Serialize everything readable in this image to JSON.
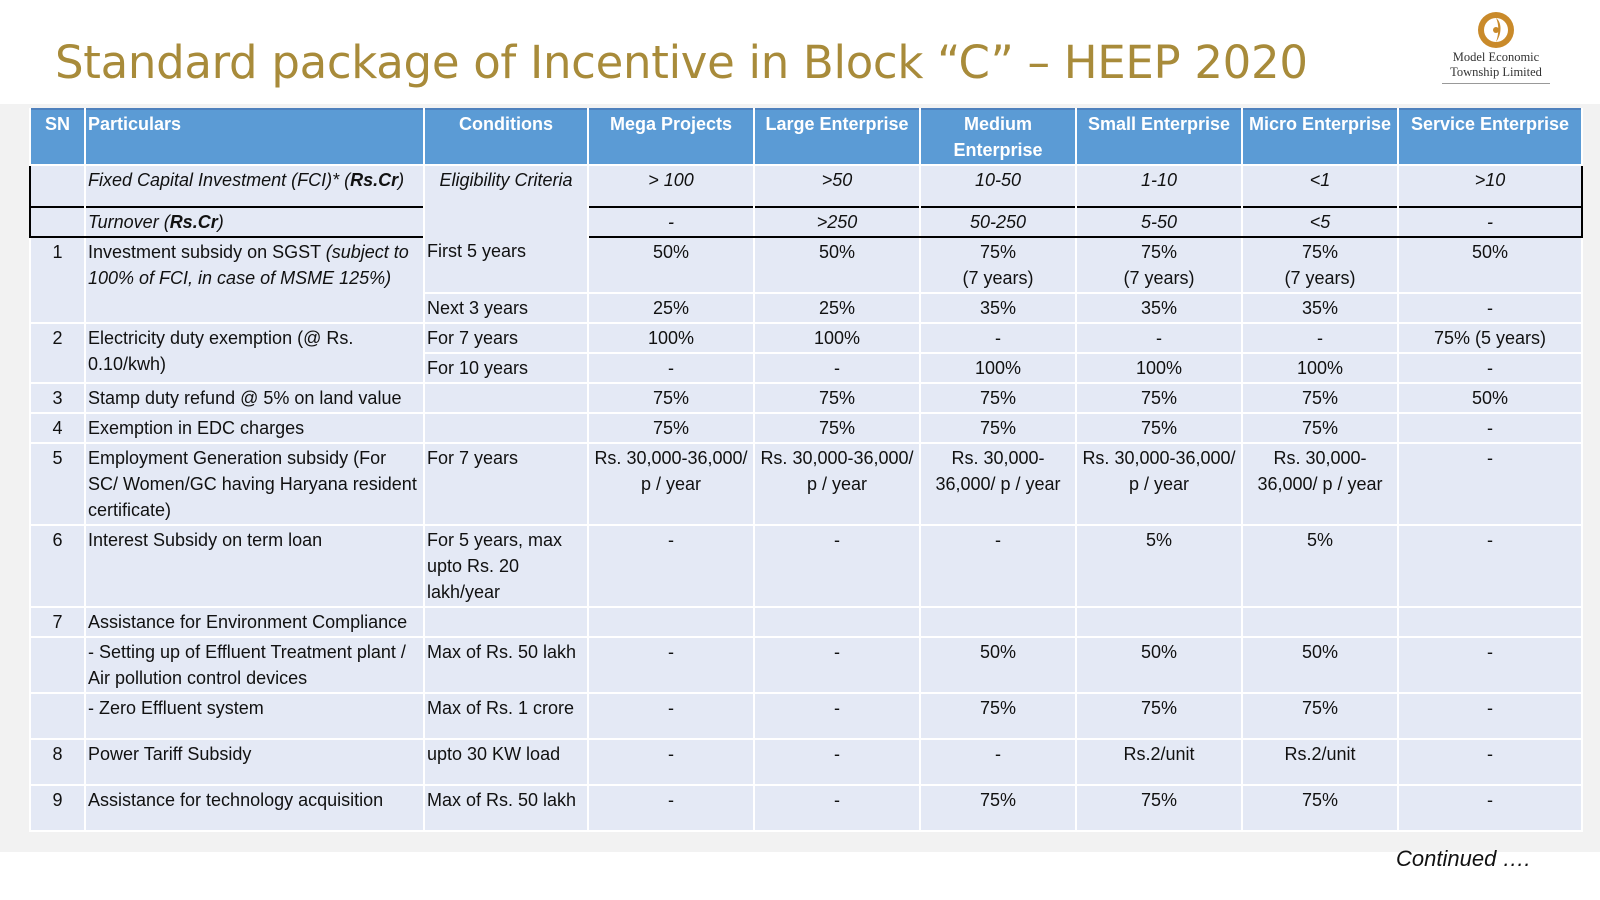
{
  "title": "Standard package of Incentive in Block “C” – HEEP 2020",
  "logo": {
    "line1": "Model Economic",
    "line2": "Township Limited",
    "icon": "reliance-logo-icon",
    "color": "#c98a2a"
  },
  "colors": {
    "title": "#a88b3a",
    "header_bg": "#5b9bd5",
    "row_bg": "#e4e9f5"
  },
  "table": {
    "headers": {
      "sn": "SN",
      "particulars": "Particulars",
      "conditions": "Conditions",
      "mega": "Mega Projects",
      "large": "Large Enterprise",
      "medium": "Medium Enterprise",
      "small": "Small Enterprise",
      "micro": "Micro Enterprise",
      "service": "Service Enterprise"
    },
    "eligibility": {
      "condition": "Eligibility Criteria",
      "fci": {
        "label_prefix": "Fixed Capital Investment (FCI)* (",
        "label_bold": "Rs.Cr",
        "label_suffix": ")",
        "values": [
          "> 100",
          ">50",
          "10-50",
          "1-10",
          "<1",
          ">10"
        ]
      },
      "turnover": {
        "label_prefix": "Turnover (",
        "label_bold": "Rs.Cr",
        "label_suffix": ")",
        "values": [
          "-",
          ">250",
          "50-250",
          "5-50",
          "<5",
          "-"
        ]
      }
    },
    "rows": {
      "r1": {
        "sn": "1",
        "particular": "Investment subsidy on SGST ",
        "particular_note": "(subject to 100% of FCI, in case of MSME 125%)",
        "a": {
          "condition": "First 5 years",
          "values": [
            "50%",
            "50%",
            "75%\n(7 years)",
            "75%\n(7 years)",
            "75%\n(7 years)",
            "50%"
          ]
        },
        "b": {
          "condition": "Next 3 years",
          "values": [
            "25%",
            "25%",
            "35%",
            "35%",
            "35%",
            "-"
          ]
        }
      },
      "r2": {
        "sn": "2",
        "particular": "Electricity duty exemption (@ Rs. 0.10/kwh)",
        "a": {
          "condition": "For 7 years",
          "values": [
            "100%",
            "100%",
            "-",
            "-",
            "-",
            "75% (5 years)"
          ]
        },
        "b": {
          "condition": "For 10 years",
          "values": [
            "-",
            "-",
            "100%",
            "100%",
            "100%",
            "-"
          ]
        }
      },
      "r3": {
        "sn": "3",
        "particular": "Stamp duty refund @ 5% on land value",
        "condition": "",
        "values": [
          "75%",
          "75%",
          "75%",
          "75%",
          "75%",
          "50%"
        ]
      },
      "r4": {
        "sn": "4",
        "particular": "Exemption in EDC charges",
        "condition": "",
        "values": [
          "75%",
          "75%",
          "75%",
          "75%",
          "75%",
          "-"
        ]
      },
      "r5": {
        "sn": "5",
        "particular": "Employment Generation subsidy (For SC/ Women/GC having Haryana resident certificate)",
        "condition": "For 7 years",
        "values": [
          "Rs. 30,000-36,000/ p / year",
          "Rs. 30,000-36,000/ p / year",
          "Rs. 30,000-36,000/ p / year",
          "Rs. 30,000-36,000/ p / year",
          "Rs. 30,000-36,000/ p / year",
          "-"
        ]
      },
      "r6": {
        "sn": "6",
        "particular": "Interest Subsidy on term loan",
        "condition": "For 5 years, max upto Rs. 20 lakh/year",
        "values": [
          "-",
          "-",
          "-",
          "5%",
          "5%",
          "-"
        ]
      },
      "r7": {
        "sn": "7",
        "particular": "Assistance for Environment Compliance",
        "a": {
          "particular": "- Setting up of Effluent Treatment plant / Air pollution control devices",
          "condition": "Max of Rs. 50 lakh",
          "values": [
            "-",
            "-",
            "50%",
            "50%",
            "50%",
            "-"
          ]
        },
        "b": {
          "particular": "- Zero Effluent system",
          "condition": "Max of Rs. 1 crore",
          "values": [
            "-",
            "-",
            "75%",
            "75%",
            "75%",
            "-"
          ]
        }
      },
      "r8": {
        "sn": "8",
        "particular": "Power Tariff Subsidy",
        "condition": "upto 30 KW load",
        "values": [
          "-",
          "-",
          "-",
          "Rs.2/unit",
          "Rs.2/unit",
          "-"
        ]
      },
      "r9": {
        "sn": "9",
        "particular": "Assistance for technology acquisition",
        "condition": "Max of Rs. 50 lakh",
        "values": [
          "-",
          "-",
          "75%",
          "75%",
          "75%",
          "-"
        ]
      }
    }
  },
  "footer": {
    "continued": "Continued …."
  }
}
